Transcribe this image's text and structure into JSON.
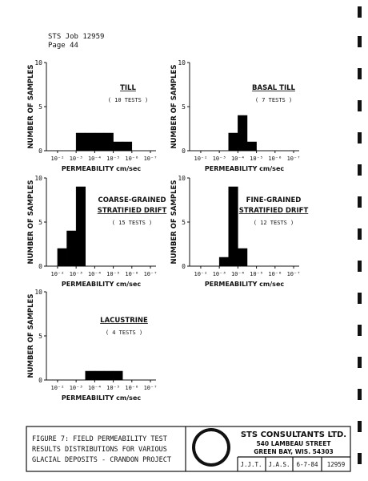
{
  "header": {
    "job": "STS Job 12959",
    "page": "Page 44"
  },
  "chart_data": [
    {
      "type": "histogram",
      "title_lines": [
        "TILL"
      ],
      "subtitle": "( 10 TESTS )",
      "xlabel": "PERMEABILITY cm/sec",
      "ylabel": "NUMBER OF SAMPLES",
      "bins": [
        -3,
        -3.5,
        -4,
        -4.5,
        -5,
        -5.5,
        -6
      ],
      "values": [
        2,
        2,
        2,
        2,
        1,
        1
      ],
      "color": "#000000",
      "xlim": [
        -1.4,
        -7.3
      ],
      "ylim": [
        0,
        10
      ],
      "yticks": [
        0,
        5,
        10
      ],
      "xticks": [
        {
          "value": -2,
          "label": "10⁻²"
        },
        {
          "value": -3,
          "label": "10⁻³"
        },
        {
          "value": -4,
          "label": "10⁻⁴"
        },
        {
          "value": -5,
          "label": "10⁻⁵"
        },
        {
          "value": -6,
          "label": "10⁻⁶"
        },
        {
          "value": -7,
          "label": "10⁻⁷"
        }
      ]
    },
    {
      "type": "histogram",
      "title_lines": [
        "BASAL TILL"
      ],
      "subtitle": "( 7 TESTS )",
      "xlabel": "PERMEABILITY cm/sec",
      "ylabel": "NUMBER OF SAMPLES",
      "bins": [
        -3.5,
        -4,
        -4.5,
        -5
      ],
      "values": [
        2,
        4,
        1
      ],
      "color": "#000000",
      "xlim": [
        -1.4,
        -7.3
      ],
      "ylim": [
        0,
        10
      ],
      "yticks": [
        0,
        5,
        10
      ],
      "xticks": [
        {
          "value": -2,
          "label": "10⁻²"
        },
        {
          "value": -3,
          "label": "10⁻³"
        },
        {
          "value": -4,
          "label": "10⁻⁴"
        },
        {
          "value": -5,
          "label": "10⁻⁵"
        },
        {
          "value": -6,
          "label": "10⁻⁶"
        },
        {
          "value": -7,
          "label": "10⁻⁷"
        }
      ]
    },
    {
      "type": "histogram",
      "title_lines": [
        "COARSE-GRAINED",
        "STRATIFIED DRIFT"
      ],
      "subtitle": "( 15 TESTS )",
      "xlabel": "PERMEABILITY cm/sec",
      "ylabel": "NUMBER OF SAMPLES",
      "bins": [
        -2,
        -2.5,
        -3,
        -3.5
      ],
      "values": [
        2,
        4,
        9
      ],
      "color": "#000000",
      "xlim": [
        -1.4,
        -7.3
      ],
      "ylim": [
        0,
        10
      ],
      "yticks": [
        0,
        5,
        10
      ],
      "xticks": [
        {
          "value": -2,
          "label": "10⁻²"
        },
        {
          "value": -3,
          "label": "10⁻³"
        },
        {
          "value": -4,
          "label": "10⁻⁴"
        },
        {
          "value": -5,
          "label": "10⁻⁵"
        },
        {
          "value": -6,
          "label": "10⁻⁶"
        },
        {
          "value": -7,
          "label": "10⁻⁷"
        }
      ]
    },
    {
      "type": "histogram",
      "title_lines": [
        "FINE-GRAINED",
        "STRATIFIED DRIFT"
      ],
      "subtitle": "( 12 TESTS )",
      "xlabel": "PERMEABILITY cm/sec",
      "ylabel": "NUMBER OF SAMPLES",
      "bins": [
        -3,
        -3.5,
        -4,
        -4.5
      ],
      "values": [
        1,
        9,
        2
      ],
      "color": "#000000",
      "xlim": [
        -1.4,
        -7.3
      ],
      "ylim": [
        0,
        10
      ],
      "yticks": [
        0,
        5,
        10
      ],
      "xticks": [
        {
          "value": -2,
          "label": "10⁻²"
        },
        {
          "value": -3,
          "label": "10⁻³"
        },
        {
          "value": -4,
          "label": "10⁻⁴"
        },
        {
          "value": -5,
          "label": "10⁻⁵"
        },
        {
          "value": -6,
          "label": "10⁻⁶"
        },
        {
          "value": -7,
          "label": "10⁻⁷"
        }
      ]
    },
    {
      "type": "histogram",
      "title_lines": [
        "LACUSTRINE"
      ],
      "subtitle": "( 4 TESTS )",
      "xlabel": "PERMEABILITY cm/sec",
      "ylabel": "NUMBER OF SAMPLES",
      "bins": [
        -3.5,
        -4,
        -4.5,
        -5,
        -5.5
      ],
      "values": [
        1,
        1,
        1,
        1
      ],
      "color": "#000000",
      "xlim": [
        -1.4,
        -7.3
      ],
      "ylim": [
        0,
        10
      ],
      "yticks": [
        0,
        5,
        10
      ],
      "xticks": [
        {
          "value": -2,
          "label": "10⁻²"
        },
        {
          "value": -3,
          "label": "10⁻³"
        },
        {
          "value": -4,
          "label": "10⁻⁴"
        },
        {
          "value": -5,
          "label": "10⁻⁵"
        },
        {
          "value": -6,
          "label": "10⁻⁶"
        },
        {
          "value": -7,
          "label": "10⁻⁷"
        }
      ]
    }
  ],
  "footer": {
    "caption": [
      "FIGURE 7: FIELD PERMEABILITY TEST",
      "RESULTS DISTRIBUTIONS FOR VARIOUS",
      "GLACIAL DEPOSITS - CRANDON PROJECT"
    ],
    "company": "STS CONSULTANTS LTD.",
    "address": [
      "540 LAMBEAU STREET",
      "GREEN BAY, WIS. 54303"
    ],
    "cells": [
      "J.J.T.",
      "J.A.S.",
      "6-7-84",
      "12959"
    ]
  }
}
